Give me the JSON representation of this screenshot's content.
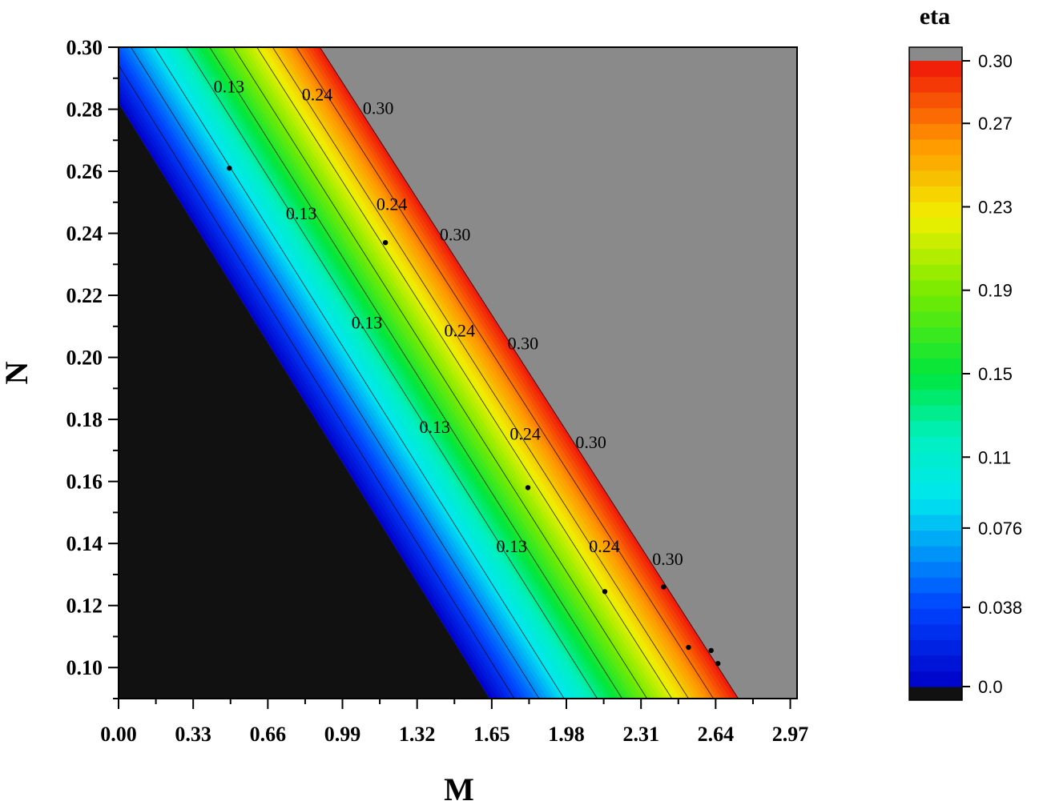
{
  "chart_data": {
    "type": "heatmap",
    "subtype": "filled-contour",
    "title": "",
    "xlabel": "M",
    "ylabel": "N",
    "xlim": [
      0.0,
      3.0
    ],
    "ylim": [
      0.09,
      0.3
    ],
    "x_ticks": [
      "0.00",
      "0.33",
      "0.66",
      "0.99",
      "1.32",
      "1.65",
      "1.98",
      "2.31",
      "2.64",
      "2.97"
    ],
    "x_tick_values": [
      0.0,
      0.33,
      0.66,
      0.99,
      1.32,
      1.65,
      1.98,
      2.31,
      2.64,
      2.97
    ],
    "y_ticks": [
      "0.10",
      "0.12",
      "0.14",
      "0.16",
      "0.18",
      "0.20",
      "0.22",
      "0.24",
      "0.26",
      "0.28",
      "0.30"
    ],
    "y_tick_values": [
      0.1,
      0.12,
      0.14,
      0.16,
      0.18,
      0.2,
      0.22,
      0.24,
      0.26,
      0.28,
      0.3
    ],
    "colorbar": {
      "title": "eta",
      "tick_labels": [
        "0.0",
        "0.038",
        "0.076",
        "0.11",
        "0.15",
        "0.19",
        "0.23",
        "0.27",
        "0.30"
      ],
      "tick_values": [
        0.0,
        0.038,
        0.076,
        0.11,
        0.15,
        0.19,
        0.23,
        0.27,
        0.3
      ],
      "range": [
        0.0,
        0.3
      ],
      "below_color": "#111111",
      "above_color": "#8a8a8a"
    },
    "field": {
      "description_model": "eta increases linearly across diagonal band",
      "zero_line": [
        [
          0.0,
          0.282
        ],
        [
          1.64,
          0.09
        ]
      ],
      "max_line": [
        [
          0.89,
          0.3
        ],
        [
          2.74,
          0.09
        ]
      ]
    },
    "contour_lines": [
      0.03,
      0.06,
      0.09,
      0.13,
      0.16,
      0.19,
      0.22,
      0.24,
      0.27,
      0.3
    ],
    "contour_labels": [
      {
        "text": "0.13",
        "M": 0.42,
        "N": 0.2854
      },
      {
        "text": "0.24",
        "M": 0.81,
        "N": 0.2828
      },
      {
        "text": "0.30",
        "M": 1.08,
        "N": 0.2785
      },
      {
        "text": "0.13",
        "M": 0.74,
        "N": 0.2445
      },
      {
        "text": "0.24",
        "M": 1.14,
        "N": 0.2475
      },
      {
        "text": "0.30",
        "M": 1.42,
        "N": 0.2377
      },
      {
        "text": "0.13",
        "M": 1.03,
        "N": 0.2093
      },
      {
        "text": "0.24",
        "M": 1.44,
        "N": 0.2068
      },
      {
        "text": "0.30",
        "M": 1.72,
        "N": 0.2026
      },
      {
        "text": "0.13",
        "M": 1.33,
        "N": 0.1757
      },
      {
        "text": "0.24",
        "M": 1.73,
        "N": 0.1734
      },
      {
        "text": "0.30",
        "M": 2.02,
        "N": 0.1708
      },
      {
        "text": "0.13",
        "M": 1.67,
        "N": 0.1372
      },
      {
        "text": "0.24",
        "M": 2.08,
        "N": 0.1372
      },
      {
        "text": "0.30",
        "M": 2.36,
        "N": 0.1331
      }
    ],
    "points": [
      {
        "M": 0.49,
        "N": 0.261
      },
      {
        "M": 1.18,
        "N": 0.237
      },
      {
        "M": 1.81,
        "N": 0.158
      },
      {
        "M": 2.15,
        "N": 0.1245
      },
      {
        "M": 2.41,
        "N": 0.126
      },
      {
        "M": 2.52,
        "N": 0.1065
      },
      {
        "M": 2.62,
        "N": 0.1055
      },
      {
        "M": 2.65,
        "N": 0.1013
      }
    ]
  }
}
